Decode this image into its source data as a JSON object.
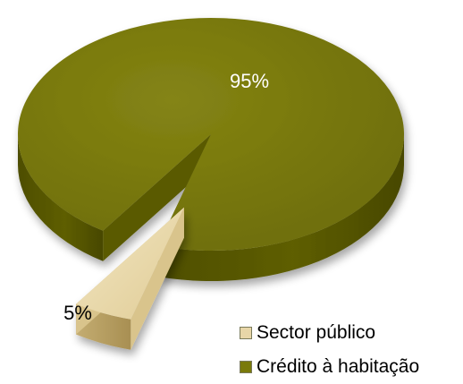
{
  "chart_data": {
    "type": "pie",
    "title": "",
    "slices": [
      {
        "name": "Crédito à habitação",
        "value": 95,
        "label": "95%",
        "color": "#7a7a0a"
      },
      {
        "name": "Sector público",
        "value": 5,
        "label": "5%",
        "color": "#e8d6a8"
      }
    ],
    "legend_position": "bottom-right",
    "legend": [
      {
        "name": "Sector público",
        "color": "#e8d6a8"
      },
      {
        "name": "Crédito à habitação",
        "color": "#7a7a0a"
      }
    ]
  }
}
